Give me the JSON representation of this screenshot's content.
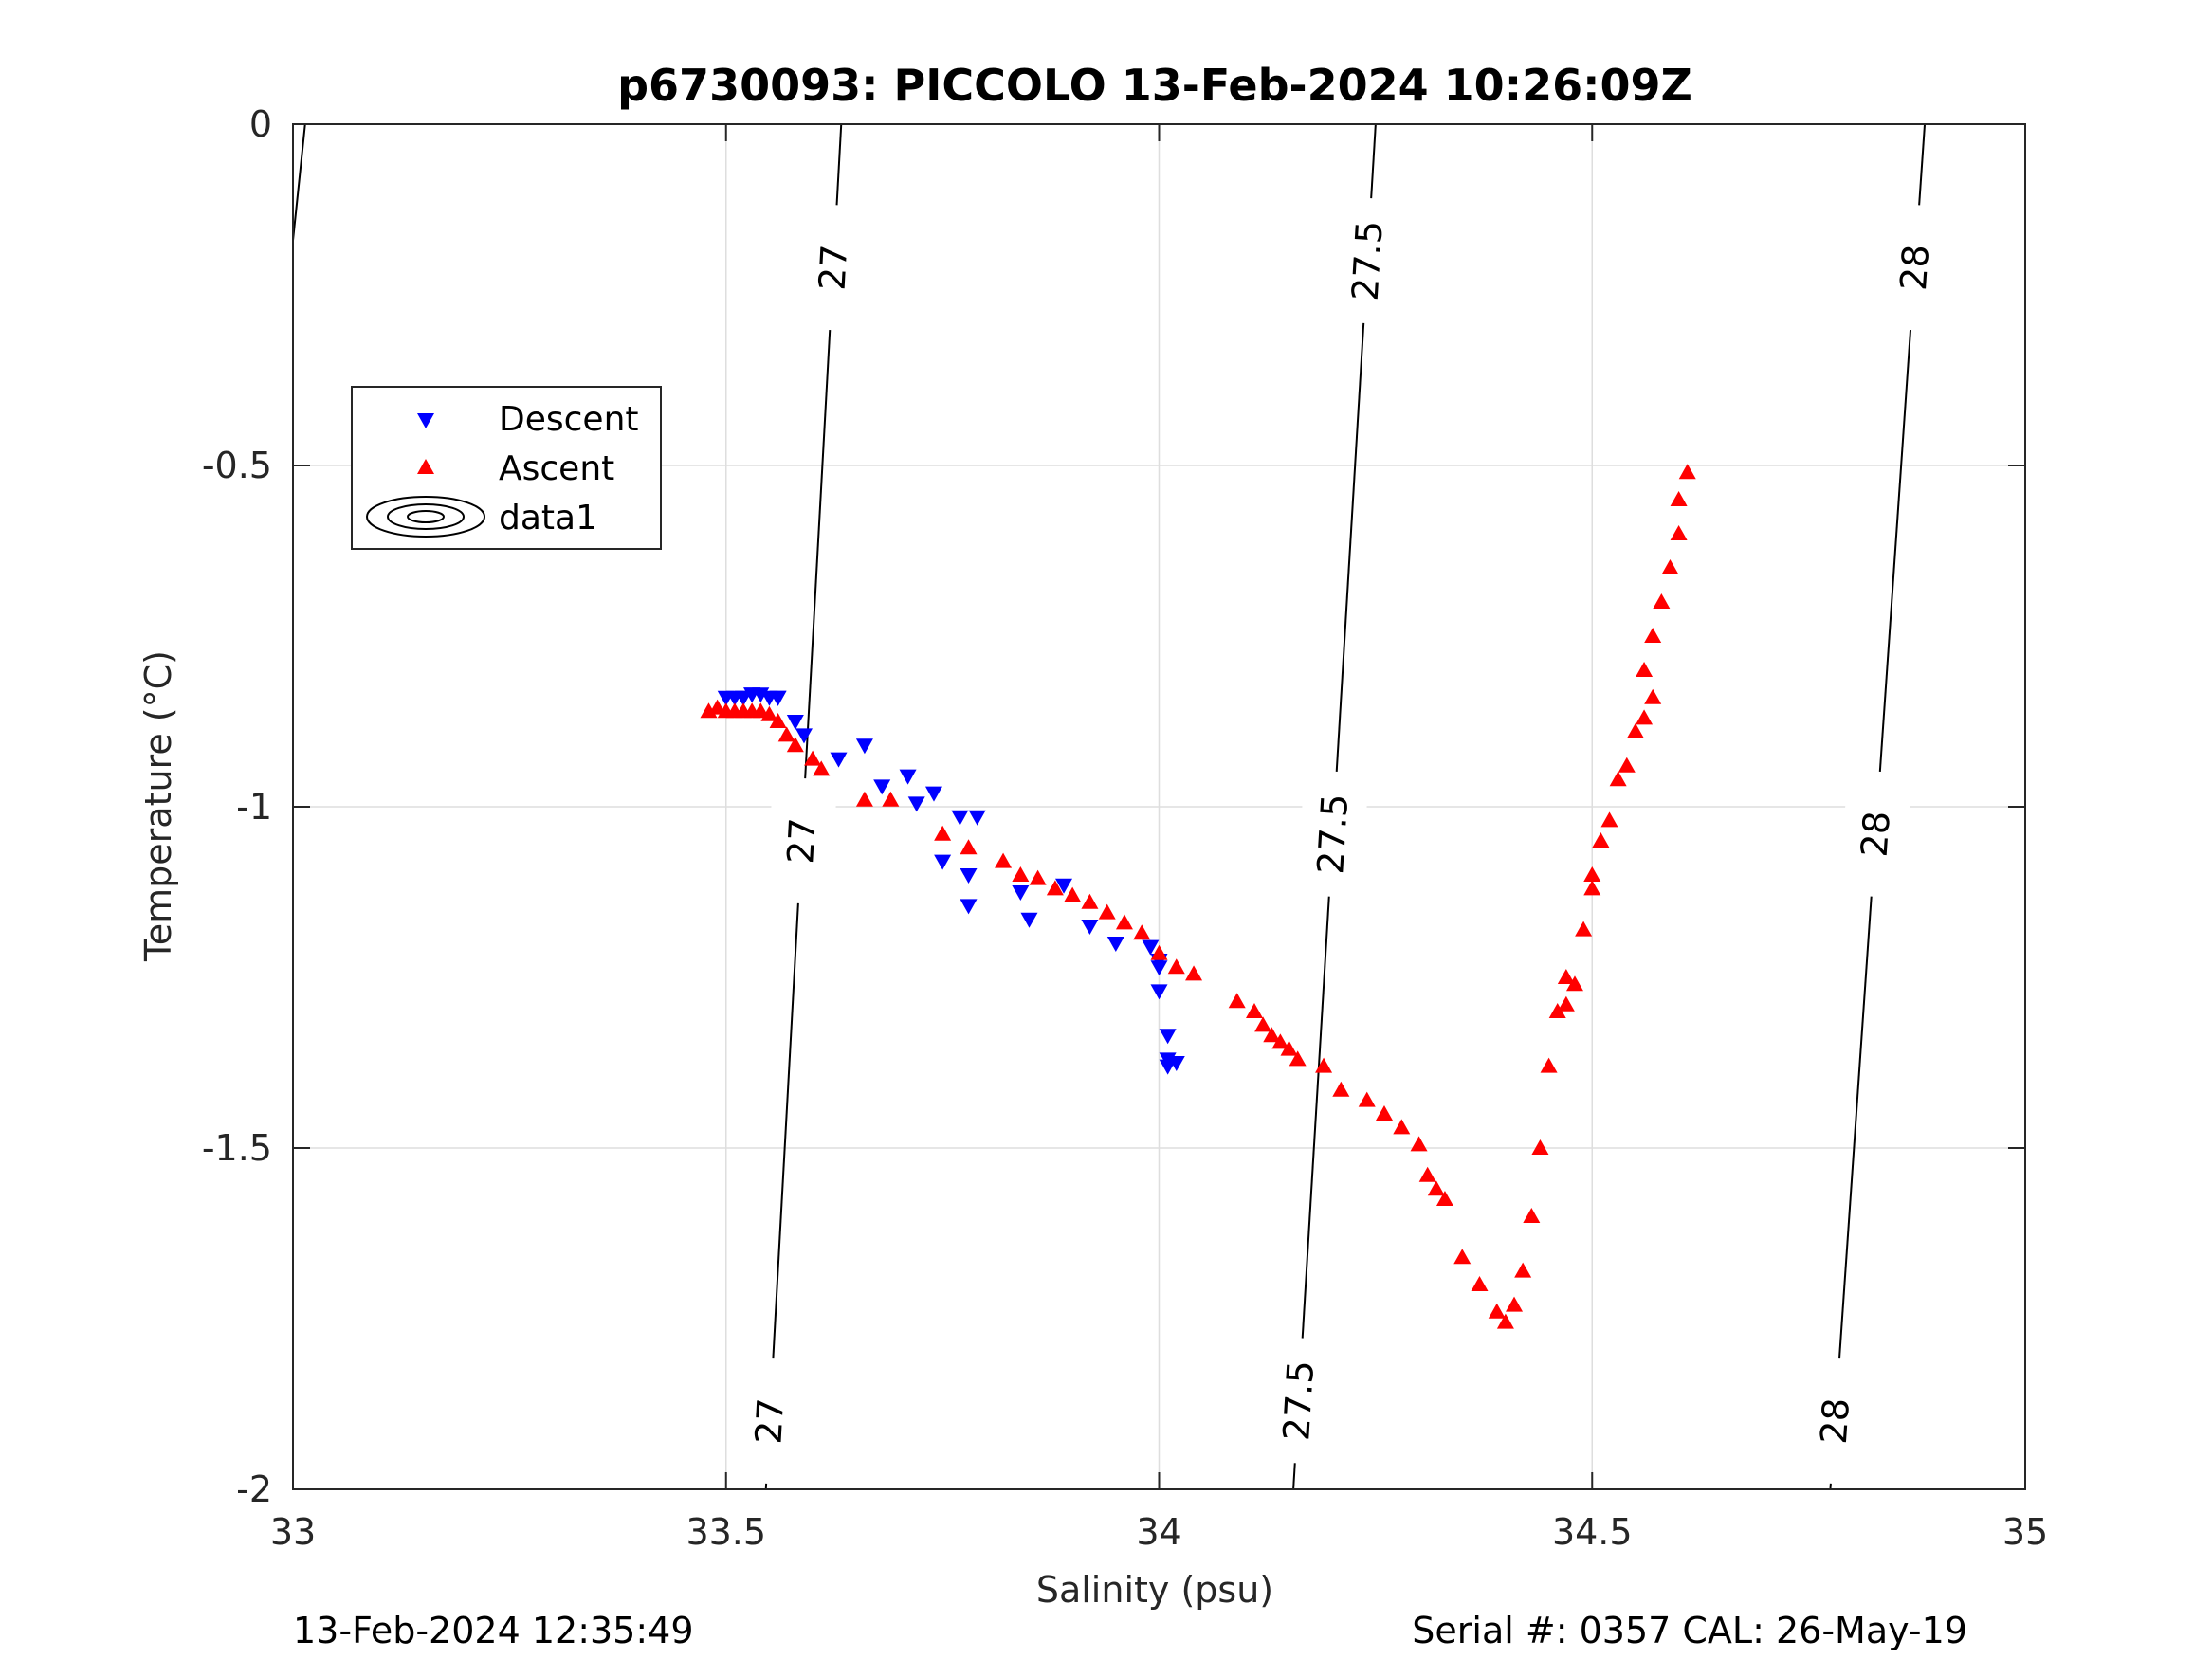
{
  "chart_data": {
    "type": "scatter",
    "title": "p6730093: PICCOLO 13-Feb-2024 10:26:09Z",
    "xlabel": "Salinity (psu)",
    "ylabel": "Temperature (°C)",
    "xlim": [
      33,
      35
    ],
    "ylim": [
      -2,
      0
    ],
    "xticks": [
      "33",
      "33.5",
      "34",
      "34.5",
      "35"
    ],
    "yticks": [
      "0",
      "-0.5",
      "-1",
      "-1.5",
      "-2"
    ],
    "grid": true,
    "legend_position": "upper-left",
    "footer_left": "13-Feb-2024 12:35:49",
    "footer_right": "Serial #: 0357  CAL: 26-May-19",
    "series": [
      {
        "name": "Descent",
        "marker": "triangle-down",
        "color": "#0000ff",
        "x": [
          33.5,
          33.51,
          33.52,
          33.52,
          33.53,
          33.53,
          33.54,
          33.55,
          33.56,
          33.56,
          33.58,
          33.59,
          33.63,
          33.66,
          33.68,
          33.71,
          33.72,
          33.74,
          33.75,
          33.77,
          33.78,
          33.78,
          33.79,
          33.84,
          33.85,
          33.89,
          33.92,
          33.95,
          33.99,
          34.0,
          34.0,
          34.0,
          34.01,
          34.01,
          34.01,
          34.02
        ],
        "y": [
          -0.84,
          -0.84,
          -0.84,
          -0.84,
          -0.835,
          -0.835,
          -0.835,
          -0.84,
          -0.84,
          -0.84,
          -0.875,
          -0.895,
          -0.93,
          -0.91,
          -0.97,
          -0.955,
          -0.995,
          -0.98,
          -1.08,
          -1.015,
          -1.1,
          -1.145,
          -1.015,
          -1.125,
          -1.165,
          -1.115,
          -1.175,
          -1.2,
          -1.205,
          -1.235,
          -1.225,
          -1.27,
          -1.335,
          -1.37,
          -1.38,
          -1.375
        ]
      },
      {
        "name": "Ascent",
        "marker": "triangle-up",
        "color": "#ff0000",
        "x": [
          33.48,
          33.49,
          33.5,
          33.51,
          33.52,
          33.53,
          33.54,
          33.55,
          33.56,
          33.57,
          33.58,
          33.6,
          33.61,
          33.66,
          33.69,
          33.75,
          33.78,
          33.82,
          33.84,
          33.86,
          33.88,
          33.9,
          33.92,
          33.94,
          33.96,
          33.98,
          34.0,
          34.02,
          34.04,
          34.09,
          34.11,
          34.12,
          34.13,
          34.14,
          34.15,
          34.16,
          34.19,
          34.21,
          34.24,
          34.26,
          34.28,
          34.3,
          34.31,
          34.32,
          34.33,
          34.35,
          34.37,
          34.39,
          34.4,
          34.41,
          34.42,
          34.43,
          34.44,
          34.45,
          34.46,
          34.47,
          34.47,
          34.48,
          34.49,
          34.5,
          34.5,
          34.51,
          34.52,
          34.53,
          34.54,
          34.55,
          34.56,
          34.56,
          34.57,
          34.57,
          34.58,
          34.59,
          34.6,
          34.6,
          34.61
        ],
        "y": [
          -0.86,
          -0.855,
          -0.86,
          -0.86,
          -0.86,
          -0.86,
          -0.86,
          -0.865,
          -0.875,
          -0.895,
          -0.91,
          -0.93,
          -0.945,
          -0.99,
          -0.99,
          -1.04,
          -1.06,
          -1.08,
          -1.1,
          -1.105,
          -1.12,
          -1.13,
          -1.14,
          -1.155,
          -1.17,
          -1.185,
          -1.215,
          -1.235,
          -1.245,
          -1.285,
          -1.3,
          -1.32,
          -1.335,
          -1.345,
          -1.355,
          -1.37,
          -1.38,
          -1.415,
          -1.43,
          -1.45,
          -1.47,
          -1.495,
          -1.54,
          -1.56,
          -1.575,
          -1.66,
          -1.7,
          -1.74,
          -1.755,
          -1.73,
          -1.68,
          -1.6,
          -1.5,
          -1.38,
          -1.3,
          -1.25,
          -1.29,
          -1.26,
          -1.18,
          -1.12,
          -1.1,
          -1.05,
          -1.02,
          -0.96,
          -0.94,
          -0.89,
          -0.87,
          -0.8,
          -0.75,
          -0.84,
          -0.7,
          -0.65,
          -0.6,
          -0.55,
          -0.51
        ]
      }
    ],
    "contours": [
      {
        "label": "27",
        "label_points": [
          {
            "x": 33.62,
            "y": -0.21
          },
          {
            "x": 33.58,
            "y": -1.05
          },
          {
            "x": 33.55,
            "y": -1.9
          }
        ]
      },
      {
        "label": "27.5",
        "label_points": [
          {
            "x": 34.25,
            "y": -0.2
          },
          {
            "x": 34.2,
            "y": -1.04
          },
          {
            "x": 34.18,
            "y": -1.87
          }
        ]
      },
      {
        "label": "28",
        "label_points": [
          {
            "x": 34.88,
            "y": -0.21
          },
          {
            "x": 34.84,
            "y": -1.04
          },
          {
            "x": 34.81,
            "y": -1.9
          }
        ]
      }
    ],
    "legend": [
      "Descent",
      "Ascent",
      "data1"
    ]
  }
}
